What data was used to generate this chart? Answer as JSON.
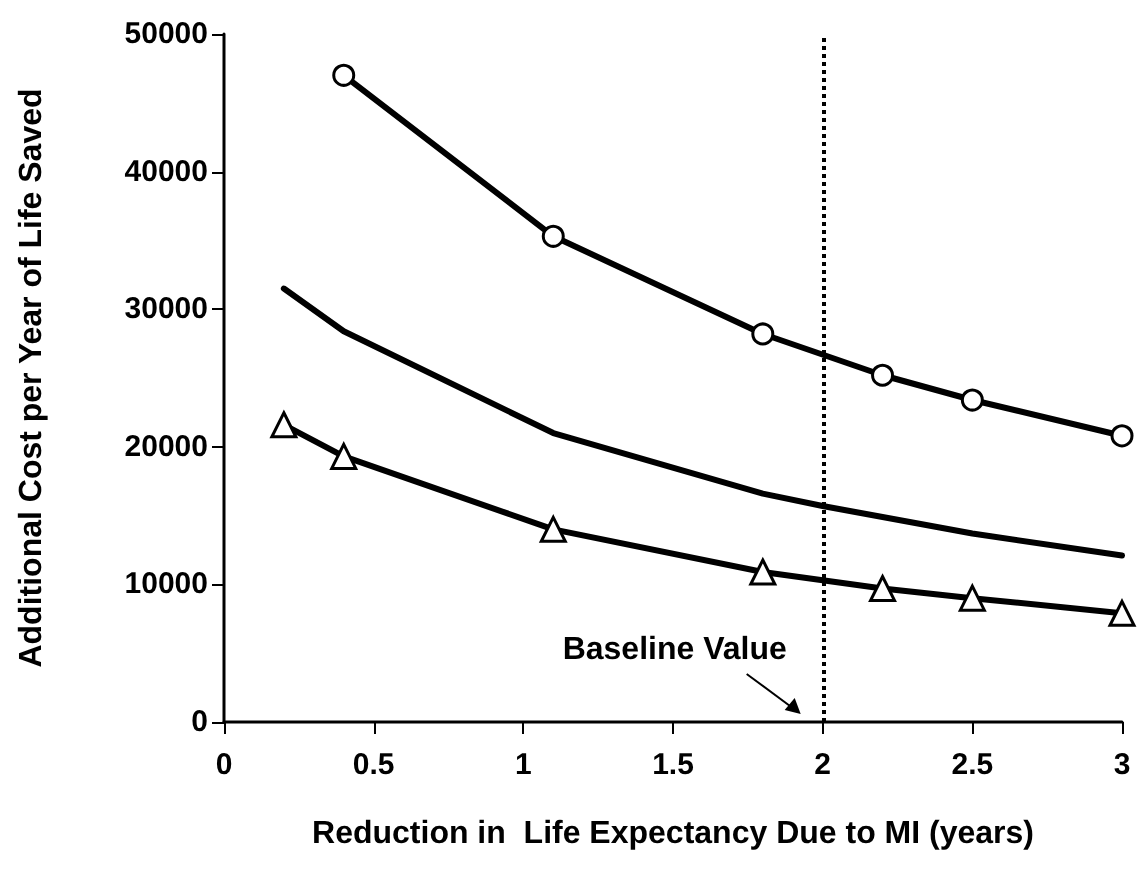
{
  "chart_data": {
    "type": "line",
    "xlabel": "Reduction in  Life Expectancy Due to MI (years)",
    "ylabel": "Additional Cost per Year of Life Saved",
    "xlim": [
      0,
      3
    ],
    "xticks": [
      0,
      0.5,
      1,
      1.5,
      2,
      2.5,
      3
    ],
    "ylim": [
      0,
      50000
    ],
    "yticks": [
      0,
      10000,
      20000,
      30000,
      40000,
      50000
    ],
    "grid": false,
    "line_style": "solid",
    "series": [
      {
        "color": "#000000",
        "marker": "circle",
        "x": [
          0.4,
          1.1,
          1.8,
          2.2,
          2.5,
          3
        ],
        "values": [
          47000,
          35300,
          28200,
          25200,
          23400,
          20800
        ]
      },
      {
        "color": "#000000",
        "marker": "none",
        "x": [
          0.2,
          0.4,
          1.1,
          1.8,
          2.0,
          2.2,
          2.5,
          3
        ],
        "values": [
          31500,
          28400,
          21000,
          16600,
          15700,
          14900,
          13700,
          12100
        ]
      },
      {
        "color": "#000000",
        "marker": "triangle",
        "x": [
          0.2,
          0.4,
          1.1,
          1.8,
          2.2,
          2.5,
          3
        ],
        "values": [
          21600,
          19300,
          14000,
          10900,
          9700,
          9000,
          7900
        ]
      }
    ],
    "ref_lines": [
      {
        "axis": "x",
        "value": 2,
        "label": "Baseline Value",
        "line_style": "dotted",
        "color": "#000000"
      }
    ]
  }
}
